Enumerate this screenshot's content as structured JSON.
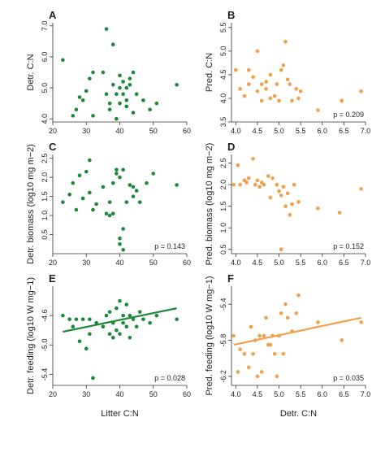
{
  "chart_data": [
    {
      "panel": "A",
      "type": "scatter",
      "ylabel": "Detr. C:N",
      "xlabel": "",
      "xlim": [
        20,
        60
      ],
      "ylim": [
        3.9,
        7.1
      ],
      "xticks": [
        "20",
        "30",
        "40",
        "50",
        "60"
      ],
      "yticks": [
        "4.0",
        "5.0",
        "6.0",
        "7.0"
      ],
      "color": "#1a8a3a",
      "pvalue": "",
      "points": [
        [
          23,
          5.9
        ],
        [
          26,
          4.1
        ],
        [
          27,
          4.3
        ],
        [
          28,
          4.7
        ],
        [
          29,
          4.6
        ],
        [
          30,
          4.9
        ],
        [
          31,
          5.3
        ],
        [
          32,
          5.5
        ],
        [
          32,
          4.1
        ],
        [
          35,
          5.5
        ],
        [
          36,
          6.9
        ],
        [
          36,
          4.8
        ],
        [
          37,
          4.5
        ],
        [
          37,
          4.3
        ],
        [
          38,
          5.1
        ],
        [
          38,
          6.4
        ],
        [
          39,
          4.8
        ],
        [
          39,
          4.0
        ],
        [
          40,
          5.0
        ],
        [
          40,
          5.4
        ],
        [
          40,
          4.5
        ],
        [
          41,
          5.2
        ],
        [
          41,
          4.8
        ],
        [
          42,
          5.0
        ],
        [
          42,
          4.6
        ],
        [
          42,
          4.4
        ],
        [
          43,
          5.3
        ],
        [
          43,
          5.1
        ],
        [
          44,
          4.2
        ],
        [
          44,
          5.5
        ],
        [
          45,
          4.8
        ],
        [
          47,
          4.6
        ],
        [
          49,
          4.3
        ],
        [
          51,
          4.5
        ],
        [
          57,
          5.1
        ]
      ],
      "trendline": null
    },
    {
      "panel": "B",
      "type": "scatter",
      "ylabel": "Pred. C:N",
      "xlabel": "",
      "xlim": [
        3.9,
        7.0
      ],
      "ylim": [
        3.5,
        5.6
      ],
      "xticks": [
        "4.0",
        "4.5",
        "5.0",
        "5.5",
        "6.0",
        "6.5",
        "7.0"
      ],
      "yticks": [
        "3.5",
        "4.0",
        "4.5",
        "5.0",
        "5.5"
      ],
      "color": "#f0a04b",
      "pvalue": "p = 0.209",
      "points": [
        [
          4.0,
          4.6
        ],
        [
          4.1,
          4.2
        ],
        [
          4.2,
          4.05
        ],
        [
          4.3,
          4.6
        ],
        [
          4.3,
          4.3
        ],
        [
          4.4,
          4.45
        ],
        [
          4.5,
          5.0
        ],
        [
          4.5,
          4.15
        ],
        [
          4.6,
          4.3
        ],
        [
          4.6,
          3.95
        ],
        [
          4.7,
          4.35
        ],
        [
          4.7,
          4.2
        ],
        [
          4.8,
          4.0
        ],
        [
          4.8,
          4.5
        ],
        [
          4.9,
          4.05
        ],
        [
          4.95,
          4.3
        ],
        [
          5.0,
          3.95
        ],
        [
          5.05,
          4.6
        ],
        [
          5.1,
          4.7
        ],
        [
          5.15,
          5.2
        ],
        [
          5.2,
          4.4
        ],
        [
          5.25,
          4.3
        ],
        [
          5.3,
          3.95
        ],
        [
          5.4,
          4.2
        ],
        [
          5.45,
          4.0
        ],
        [
          5.5,
          4.15
        ],
        [
          5.9,
          3.75
        ],
        [
          6.45,
          3.95
        ],
        [
          6.9,
          4.15
        ]
      ],
      "trendline": null
    },
    {
      "panel": "C",
      "type": "scatter",
      "ylabel": "Detr. biomass (log10 mg m−2)",
      "xlabel": "",
      "xlim": [
        20,
        60
      ],
      "ylim": [
        0.0,
        2.6
      ],
      "xticks": [
        "20",
        "30",
        "40",
        "50",
        "60"
      ],
      "yticks": [
        "0.5",
        "1.0",
        "1.5",
        "2.0",
        "2.5"
      ],
      "color": "#1a8a3a",
      "pvalue": "p = 0.143",
      "points": [
        [
          23,
          1.35
        ],
        [
          25,
          1.55
        ],
        [
          26,
          1.85
        ],
        [
          27,
          1.15
        ],
        [
          28,
          2.05
        ],
        [
          29,
          1.45
        ],
        [
          30,
          2.15
        ],
        [
          31,
          1.6
        ],
        [
          31,
          2.45
        ],
        [
          32,
          1.15
        ],
        [
          33,
          1.3
        ],
        [
          35,
          1.75
        ],
        [
          36,
          1.05
        ],
        [
          37,
          1.35
        ],
        [
          37,
          1.0
        ],
        [
          38,
          1.05
        ],
        [
          38,
          1.85
        ],
        [
          39,
          2.1
        ],
        [
          39,
          2.2
        ],
        [
          40,
          2.0
        ],
        [
          40,
          0.4
        ],
        [
          40,
          0.25
        ],
        [
          41,
          0.1
        ],
        [
          41,
          0.65
        ],
        [
          41,
          2.2
        ],
        [
          42,
          1.35
        ],
        [
          43,
          1.8
        ],
        [
          44,
          1.5
        ],
        [
          44,
          1.75
        ],
        [
          45,
          1.65
        ],
        [
          46,
          1.35
        ],
        [
          48,
          1.85
        ],
        [
          50,
          2.1
        ],
        [
          57,
          1.8
        ]
      ],
      "trendline": null
    },
    {
      "panel": "D",
      "type": "scatter",
      "ylabel": "Pred. biomass (log10 mg m−2)",
      "xlabel": "",
      "xlim": [
        3.9,
        7.0
      ],
      "ylim": [
        0.4,
        2.7
      ],
      "xticks": [
        "4.0",
        "4.5",
        "5.0",
        "5.5",
        "6.0",
        "6.5",
        "7.0"
      ],
      "yticks": [
        "0.5",
        "1.0",
        "1.5",
        "2.0",
        "2.5"
      ],
      "color": "#f0a04b",
      "pvalue": "p = 0.152",
      "points": [
        [
          3.95,
          2.0
        ],
        [
          4.05,
          2.45
        ],
        [
          4.1,
          2.0
        ],
        [
          4.2,
          2.1
        ],
        [
          4.25,
          2.05
        ],
        [
          4.3,
          2.15
        ],
        [
          4.4,
          2.6
        ],
        [
          4.45,
          2.0
        ],
        [
          4.5,
          2.1
        ],
        [
          4.55,
          1.95
        ],
        [
          4.6,
          2.05
        ],
        [
          4.65,
          2.0
        ],
        [
          4.75,
          2.2
        ],
        [
          4.8,
          1.7
        ],
        [
          4.85,
          2.15
        ],
        [
          4.95,
          2.0
        ],
        [
          5.0,
          1.85
        ],
        [
          5.05,
          1.75
        ],
        [
          5.1,
          1.95
        ],
        [
          5.15,
          1.5
        ],
        [
          5.2,
          1.8
        ],
        [
          5.25,
          1.3
        ],
        [
          5.3,
          1.55
        ],
        [
          5.35,
          2.0
        ],
        [
          5.45,
          1.6
        ],
        [
          5.05,
          0.5
        ],
        [
          5.9,
          1.45
        ],
        [
          6.4,
          1.35
        ],
        [
          6.9,
          1.9
        ]
      ],
      "trendline": null
    },
    {
      "panel": "E",
      "type": "scatter",
      "ylabel": "Detr. feeding (log10 W mg−1)",
      "xlabel": "Litter C:N",
      "xlim": [
        20,
        60
      ],
      "ylim": [
        -5.55,
        -4.2
      ],
      "xticks": [
        "20",
        "30",
        "40",
        "50",
        "60"
      ],
      "yticks": [
        "-5.4",
        "-5.0",
        "-4.6"
      ],
      "color": "#1a8a3a",
      "pvalue": "p = 0.028",
      "points": [
        [
          23,
          -4.6
        ],
        [
          25,
          -4.65
        ],
        [
          26,
          -4.75
        ],
        [
          27,
          -4.65
        ],
        [
          28,
          -4.95
        ],
        [
          29,
          -4.65
        ],
        [
          30,
          -5.05
        ],
        [
          31,
          -4.85
        ],
        [
          31,
          -4.65
        ],
        [
          32,
          -5.45
        ],
        [
          33,
          -4.7
        ],
        [
          35,
          -4.75
        ],
        [
          36,
          -4.6
        ],
        [
          37,
          -4.55
        ],
        [
          37,
          -4.85
        ],
        [
          38,
          -4.7
        ],
        [
          38,
          -4.9
        ],
        [
          39,
          -4.5
        ],
        [
          39,
          -4.8
        ],
        [
          40,
          -4.4
        ],
        [
          40,
          -4.85
        ],
        [
          41,
          -4.6
        ],
        [
          41,
          -4.7
        ],
        [
          42,
          -4.45
        ],
        [
          42,
          -4.75
        ],
        [
          43,
          -4.6
        ],
        [
          43,
          -4.9
        ],
        [
          44,
          -4.65
        ],
        [
          45,
          -4.75
        ],
        [
          46,
          -4.55
        ],
        [
          47,
          -4.65
        ],
        [
          49,
          -4.7
        ],
        [
          51,
          -4.6
        ],
        [
          57,
          -4.65
        ]
      ],
      "trendline": [
        [
          23,
          -4.82
        ],
        [
          57,
          -4.5
        ]
      ]
    },
    {
      "panel": "F",
      "type": "scatter",
      "ylabel": "Pred. feeding (log10 W mg−1)",
      "xlabel": "Detr. C:N",
      "xlim": [
        3.9,
        7.0
      ],
      "ylim": [
        -6.3,
        -5.2
      ],
      "xticks": [
        "4.0",
        "4.5",
        "5.0",
        "5.5",
        "6.0",
        "6.5",
        "7.0"
      ],
      "yticks": [
        "-6.2",
        "-5.8",
        "-5.4"
      ],
      "color": "#f0a04b",
      "pvalue": "p = 0.035",
      "points": [
        [
          3.95,
          -5.75
        ],
        [
          4.05,
          -6.15
        ],
        [
          4.1,
          -5.9
        ],
        [
          4.2,
          -5.95
        ],
        [
          4.3,
          -6.1
        ],
        [
          4.35,
          -5.65
        ],
        [
          4.4,
          -5.95
        ],
        [
          4.45,
          -5.8
        ],
        [
          4.5,
          -6.2
        ],
        [
          4.55,
          -5.75
        ],
        [
          4.6,
          -6.15
        ],
        [
          4.65,
          -5.75
        ],
        [
          4.7,
          -5.55
        ],
        [
          4.75,
          -5.85
        ],
        [
          4.8,
          -5.85
        ],
        [
          4.85,
          -5.75
        ],
        [
          4.9,
          -5.95
        ],
        [
          4.95,
          -6.2
        ],
        [
          5.0,
          -5.75
        ],
        [
          5.05,
          -5.5
        ],
        [
          5.1,
          -5.95
        ],
        [
          5.15,
          -5.4
        ],
        [
          5.2,
          -5.55
        ],
        [
          5.3,
          -5.7
        ],
        [
          5.4,
          -5.5
        ],
        [
          5.45,
          -5.3
        ],
        [
          5.9,
          -5.6
        ],
        [
          6.45,
          -5.8
        ],
        [
          6.9,
          -5.6
        ]
      ],
      "trendline": [
        [
          3.95,
          -5.85
        ],
        [
          6.9,
          -5.55
        ]
      ]
    }
  ]
}
